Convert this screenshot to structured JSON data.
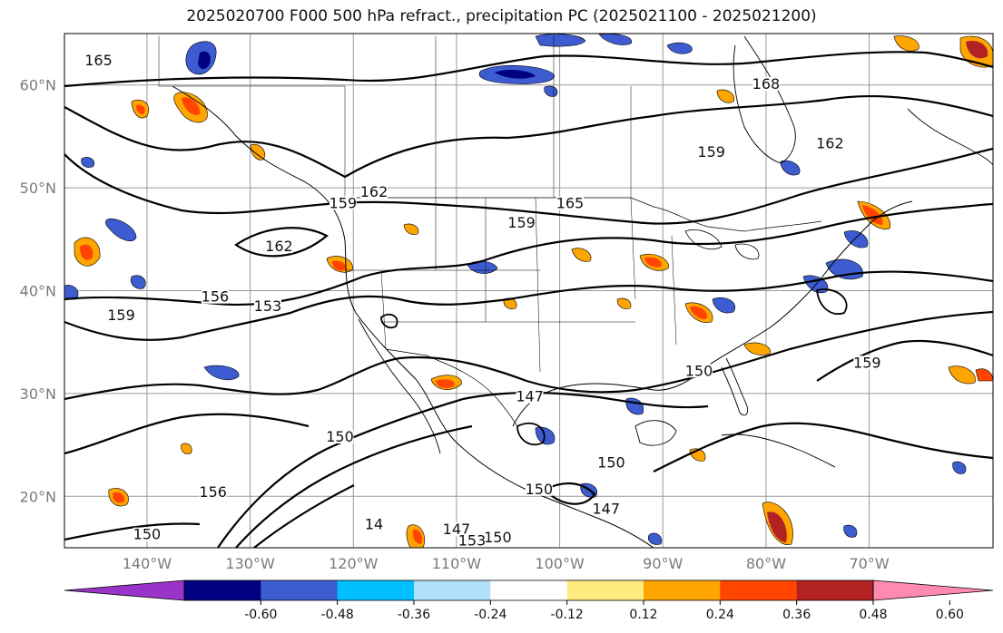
{
  "title": "2025020700 F000 500 hPa refract., precipitation PC (2025021100 - 2025021200)",
  "extent": {
    "lon_min": -148,
    "lon_max": -58,
    "lat_min": 15,
    "lat_max": 65
  },
  "lon_ticks": [
    {
      "value": -140,
      "label": "140°W"
    },
    {
      "value": -130,
      "label": "130°W"
    },
    {
      "value": -120,
      "label": "120°W"
    },
    {
      "value": -110,
      "label": "110°W"
    },
    {
      "value": -100,
      "label": "100°W"
    },
    {
      "value": -90,
      "label": "90°W"
    },
    {
      "value": -80,
      "label": "80°W"
    },
    {
      "value": -70,
      "label": "70°W"
    }
  ],
  "lat_ticks": [
    {
      "value": 20,
      "label": "20°N"
    },
    {
      "value": 30,
      "label": "30°N"
    },
    {
      "value": 40,
      "label": "40°N"
    },
    {
      "value": 50,
      "label": "50°N"
    },
    {
      "value": 60,
      "label": "60°N"
    }
  ],
  "contour_labels": [
    {
      "text": "165",
      "lon": -99,
      "lat": 48.2
    },
    {
      "text": "165",
      "lon": -144.7,
      "lat": 62.1
    },
    {
      "text": "168",
      "lon": -80.0,
      "lat": 59.8
    },
    {
      "text": "162",
      "lon": -73.8,
      "lat": 54.0
    },
    {
      "text": "159",
      "lon": -85.3,
      "lat": 53.2
    },
    {
      "text": "162",
      "lon": -118.0,
      "lat": 49.3
    },
    {
      "text": "159",
      "lon": -121.0,
      "lat": 48.2
    },
    {
      "text": "159",
      "lon": -103.7,
      "lat": 46.3
    },
    {
      "text": "162",
      "lon": -127.2,
      "lat": 44.0
    },
    {
      "text": "156",
      "lon": -133.4,
      "lat": 39.1
    },
    {
      "text": "153",
      "lon": -128.3,
      "lat": 38.2
    },
    {
      "text": "159",
      "lon": -142.5,
      "lat": 37.3
    },
    {
      "text": "150",
      "lon": -86.5,
      "lat": 31.9
    },
    {
      "text": "159",
      "lon": -70.2,
      "lat": 32.7
    },
    {
      "text": "147",
      "lon": -102.9,
      "lat": 29.4
    },
    {
      "text": "150",
      "lon": -121.3,
      "lat": 25.5
    },
    {
      "text": "150",
      "lon": -102.0,
      "lat": 20.4
    },
    {
      "text": "150",
      "lon": -95.0,
      "lat": 23.0
    },
    {
      "text": "147",
      "lon": -95.5,
      "lat": 18.5
    },
    {
      "text": "147",
      "lon": -110.0,
      "lat": 16.5
    },
    {
      "text": "150",
      "lon": -106.0,
      "lat": 15.7
    },
    {
      "text": "153",
      "lon": -108.5,
      "lat": 15.4
    },
    {
      "text": "150",
      "lon": -140.0,
      "lat": 16.0
    },
    {
      "text": "156",
      "lon": -133.6,
      "lat": 20.1
    },
    {
      "text": "14",
      "lon": -118.0,
      "lat": 17.0
    }
  ],
  "colorbar": {
    "colors": [
      "#9a34c9",
      "#000080",
      "#3c5cd0",
      "#00bfff",
      "#b0e0fa",
      "#ffffff",
      "#ffeb80",
      "#ffa500",
      "#ff4500",
      "#b22222",
      "#ff8ab0"
    ],
    "ticks": [
      "-0.60",
      "-0.48",
      "-0.36",
      "-0.24",
      "-0.12",
      "0.12",
      "0.24",
      "0.36",
      "0.48",
      "0.60"
    ]
  }
}
